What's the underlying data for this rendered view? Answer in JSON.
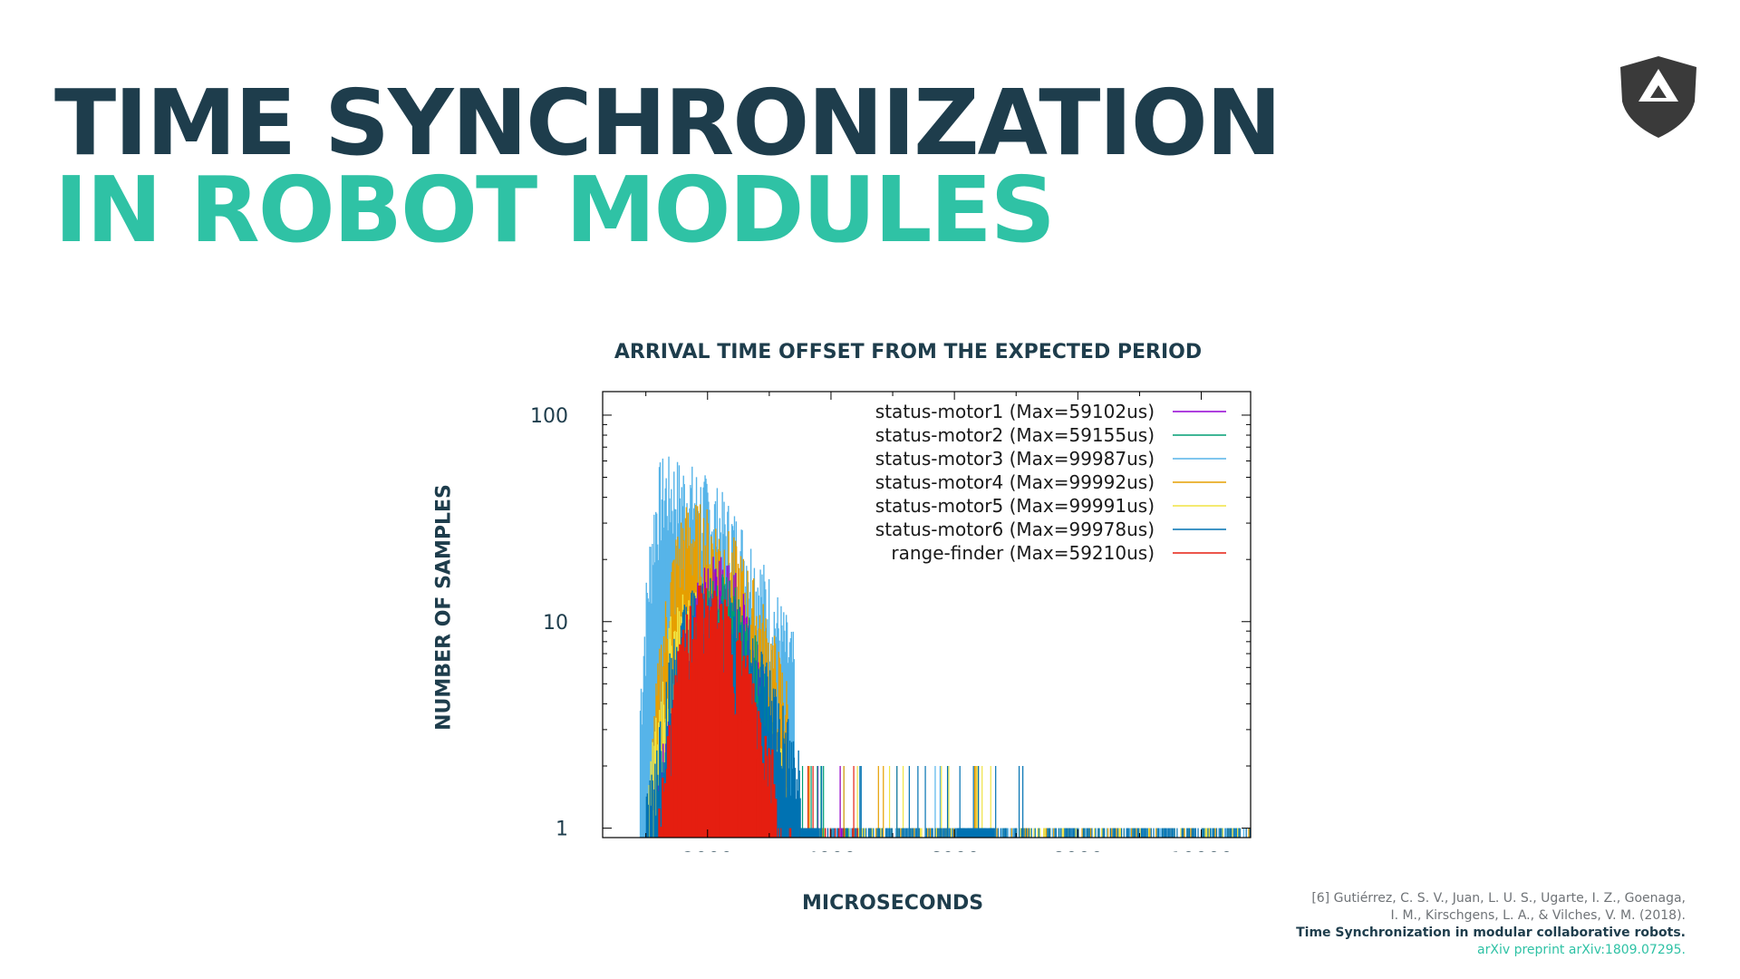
{
  "slide": {
    "title_line1": "TIME SYNCHRONIZATION",
    "title_line2": "IN ROBOT MODULES",
    "colors": {
      "dark": "#1e3d4c",
      "accent": "#2fc2a5",
      "background": "#ffffff"
    },
    "logo_icon": "shield-triangle-logo-icon"
  },
  "chart_data": {
    "type": "bar",
    "title": "ARRIVAL TIME OFFSET FROM THE EXPECTED PERIOD",
    "xlabel": "MICROSECONDS",
    "ylabel": "NUMBER OF SAMPLES",
    "x_scale": "linear",
    "y_scale": "log",
    "xlim": [
      300,
      10800
    ],
    "ylim": [
      0.9,
      130
    ],
    "x_ticks": [
      2000,
      4000,
      6000,
      8000,
      10000
    ],
    "y_ticks": [
      1,
      10,
      100
    ],
    "x_tick_labels": [
      "2000",
      "4000",
      "6000",
      "8000",
      "10000"
    ],
    "y_tick_labels": [
      "1",
      "10",
      "100"
    ],
    "grid": false,
    "legend_position": "top-right",
    "series": [
      {
        "name": "status-motor1 (Max=59102us)",
        "color": "#9400d3",
        "peak_x": 2150,
        "peak_y": 19,
        "range": [
          1200,
          3100
        ]
      },
      {
        "name": "status-motor2 (Max=59155us)",
        "color": "#009e73",
        "peak_x": 2250,
        "peak_y": 16,
        "range": [
          1250,
          3150
        ]
      },
      {
        "name": "status-motor3 (Max=99987us)",
        "color": "#56b4e9",
        "peak_x": 1280,
        "peak_y": 58,
        "range": [
          900,
          3400
        ]
      },
      {
        "name": "status-motor4 (Max=99992us)",
        "color": "#e69f00",
        "peak_x": 1700,
        "peak_y": 35,
        "range": [
          1100,
          3300
        ]
      },
      {
        "name": "status-motor5 (Max=99991us)",
        "color": "#f0e442",
        "peak_x": 1600,
        "peak_y": 13,
        "range": [
          1000,
          3300
        ]
      },
      {
        "name": "status-motor6 (Max=99978us)",
        "color": "#0072b2",
        "peak_x": 1900,
        "peak_y": 15,
        "range": [
          1000,
          3500
        ]
      },
      {
        "name": "range-finder (Max=59210us)",
        "color": "#e51e10",
        "peak_x": 1900,
        "peak_y": 14,
        "range": [
          1200,
          3100
        ]
      }
    ]
  },
  "citation": {
    "line1": "[6] Gutiérrez, C. S. V., Juan, L. U. S., Ugarte, I. Z., Goenaga,",
    "line2": "I. M., Kirschgens, L. A., & Vilches, V. M. (2018).",
    "line3": "Time Synchronization in modular collaborative robots.",
    "line4": "arXiv preprint arXiv:1809.07295."
  }
}
